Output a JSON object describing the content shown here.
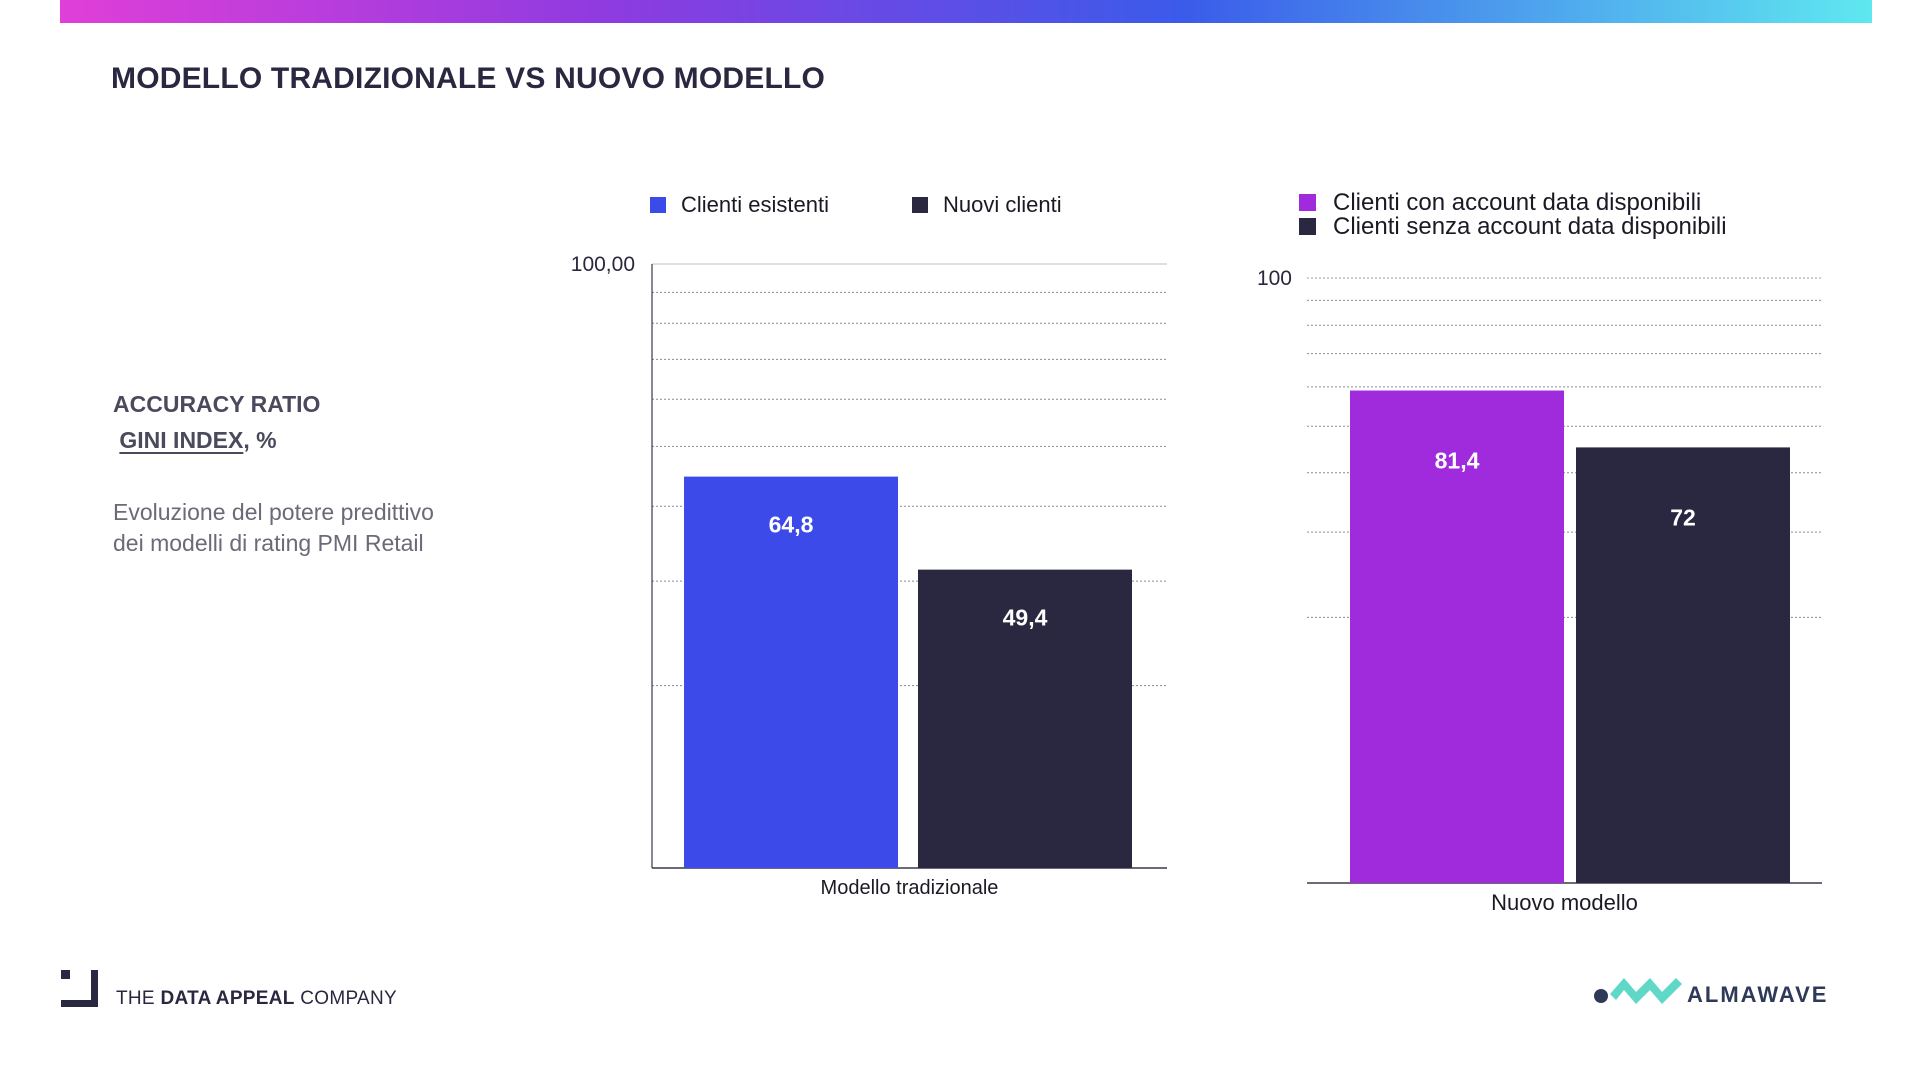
{
  "header": {
    "title": "MODELLO TRADIZIONALE VS NUOVO MODELLO"
  },
  "sidebar": {
    "metric_line1": "ACCURACY RATIO",
    "metric_gini": "GINI INDEX",
    "metric_unit": ", %",
    "description": "Evoluzione del potere predittivo dei modelli di rating PMI Retail"
  },
  "footer": {
    "left_brand": {
      "pre": "THE ",
      "bold": "DATA APPEAL",
      "post": " COMPANY"
    },
    "right_brand": "ALMAWAVE"
  },
  "colors": {
    "accent_blue": "#3d4aea",
    "accent_purple": "#9f2bdd",
    "dark_navy": "#292840",
    "gradient": [
      "#e03fd8",
      "#8e3be0",
      "#3b5bea",
      "#5fe8f0"
    ]
  },
  "chart_data": [
    {
      "type": "bar",
      "categories": [
        "Modello tradizionale"
      ],
      "series": [
        {
          "name": "Clienti esistenti",
          "values": [
            64.8
          ],
          "label": "64,8",
          "color": "#3d4aea"
        },
        {
          "name": "Nuovi clienti",
          "values": [
            49.4
          ],
          "label": "49,4",
          "color": "#292840"
        }
      ],
      "ylim": [
        0,
        100
      ],
      "y_top_label": "100,00",
      "grid": true,
      "legend": "top"
    },
    {
      "type": "bar",
      "categories": [
        "Nuovo modello"
      ],
      "series": [
        {
          "name": "Clienti con account data disponibili",
          "values": [
            81.4
          ],
          "label": "81,4",
          "color": "#9f2bdd"
        },
        {
          "name": "Clienti senza account data disponibili",
          "values": [
            72
          ],
          "label": "72",
          "color": "#292840"
        }
      ],
      "ylim": [
        0,
        100
      ],
      "y_top_label": "100",
      "grid": true,
      "legend": "top"
    }
  ]
}
